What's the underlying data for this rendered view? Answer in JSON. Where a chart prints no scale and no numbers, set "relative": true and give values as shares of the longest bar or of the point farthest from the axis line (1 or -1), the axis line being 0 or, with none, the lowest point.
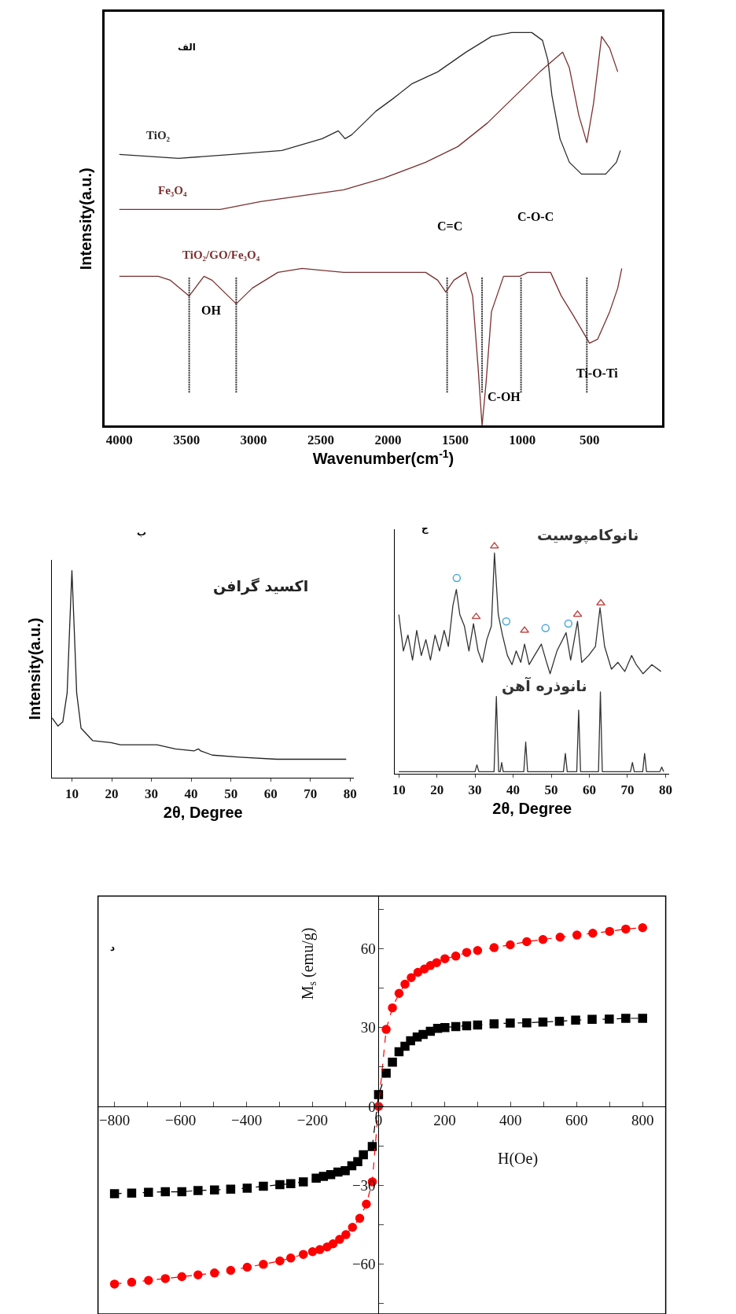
{
  "chart_data": [
    {
      "type": "line",
      "relative": true,
      "xlabel": "Wavenumber(cm$^{-1}$)",
      "ylabel": "Intensity(a.u.)",
      "xlim": [
        4110,
        -40
      ],
      "xticks": [
        4000,
        3500,
        3000,
        2500,
        2000,
        1500,
        1000,
        500
      ],
      "annotations": [
        "الف",
        "OH",
        "C=C",
        "C-O-C",
        "C-OH",
        "Ti-O-Ti"
      ],
      "ref_lines": [
        {
          "axis": "x",
          "value": 3480,
          "line_style": "dotted",
          "color": "#333333"
        },
        {
          "axis": "x",
          "value": 3130,
          "line_style": "dotted",
          "color": "#333333"
        },
        {
          "axis": "x",
          "value": 1560,
          "line_style": "dotted",
          "color": "#333333"
        },
        {
          "axis": "x",
          "value": 1300,
          "line_style": "dotted",
          "color": "#333333"
        },
        {
          "axis": "x",
          "value": 1010,
          "line_style": "dotted",
          "color": "#333333"
        },
        {
          "axis": "x",
          "value": 520,
          "line_style": "dotted",
          "color": "#333333"
        }
      ],
      "series": [
        {
          "name": "TiO₂",
          "color": "#2b2b2b",
          "x": [
            4000,
            3560,
            3160,
            2790,
            2490,
            2370,
            2320,
            2270,
            2090,
            1970,
            1820,
            1630,
            1420,
            1230,
            1080,
            930,
            850,
            810,
            780,
            720,
            650,
            560,
            380,
            300,
            270
          ],
          "values": [
            0.69,
            0.68,
            0.69,
            0.7,
            0.73,
            0.75,
            0.73,
            0.74,
            0.8,
            0.83,
            0.87,
            0.9,
            0.95,
            0.99,
            1.0,
            1.0,
            0.98,
            0.93,
            0.84,
            0.73,
            0.67,
            0.64,
            0.64,
            0.67,
            0.7
          ]
        },
        {
          "name": "Fe₃O₄",
          "color": "#7a3030",
          "x": [
            4000,
            3250,
            2950,
            2330,
            2030,
            1720,
            1480,
            1260,
            1050,
            870,
            700,
            650,
            580,
            520,
            470,
            410,
            350,
            290
          ],
          "values": [
            0.55,
            0.55,
            0.57,
            0.6,
            0.63,
            0.67,
            0.71,
            0.77,
            0.84,
            0.9,
            0.95,
            0.91,
            0.79,
            0.72,
            0.82,
            0.99,
            0.96,
            0.9
          ]
        },
        {
          "name": "TiO₂/GO/Fe₃O₄",
          "color": "#7a3030",
          "x": [
            4000,
            3710,
            3620,
            3480,
            3370,
            3310,
            3130,
            3010,
            2820,
            2640,
            2330,
            2030,
            1720,
            1630,
            1570,
            1510,
            1420,
            1370,
            1330,
            1300,
            1270,
            1230,
            1140,
            1020,
            960,
            790,
            710,
            620,
            500,
            440,
            350,
            290,
            260
          ],
          "values": [
            0.38,
            0.38,
            0.37,
            0.33,
            0.38,
            0.37,
            0.31,
            0.35,
            0.39,
            0.4,
            0.39,
            0.39,
            0.39,
            0.37,
            0.34,
            0.37,
            0.39,
            0.33,
            0.15,
            0.0,
            0.11,
            0.29,
            0.38,
            0.38,
            0.39,
            0.39,
            0.33,
            0.28,
            0.21,
            0.22,
            0.29,
            0.35,
            0.4
          ]
        }
      ]
    },
    {
      "type": "line",
      "relative": true,
      "xlabel": "2θ, Degree",
      "ylabel": "Intensity(a.u.)",
      "xlim": [
        5,
        81
      ],
      "xticks": [
        10,
        20,
        30,
        40,
        50,
        60,
        70,
        80
      ],
      "annotations": [
        "ب"
      ],
      "series": [
        {
          "name": "اکسید گرافن",
          "color": "#222222",
          "x": [
            5.0,
            6.5,
            7.7,
            8.8,
            9.4,
            10.0,
            10.6,
            11.2,
            12.3,
            15.2,
            19.8,
            22.2,
            26.8,
            31.4,
            36.0,
            40.7,
            41.8,
            42.4,
            45.3,
            52.2,
            61.5,
            73.1,
            79.0
          ],
          "values": [
            0.29,
            0.25,
            0.27,
            0.41,
            0.71,
            1.0,
            0.71,
            0.41,
            0.24,
            0.18,
            0.17,
            0.16,
            0.16,
            0.16,
            0.14,
            0.13,
            0.14,
            0.13,
            0.11,
            0.1,
            0.09,
            0.09,
            0.09
          ]
        }
      ]
    },
    {
      "type": "line",
      "relative": true,
      "xlabel": "2θ, Degree",
      "xlim": [
        9,
        81
      ],
      "xticks": [
        10,
        20,
        30,
        40,
        50,
        60,
        70,
        80
      ],
      "annotations": [
        "ج"
      ],
      "series": [
        {
          "name": "نانوکامپوسیت",
          "color": "#333333",
          "x": [
            10.0,
            11.2,
            12.4,
            13.6,
            14.7,
            15.9,
            17.1,
            18.3,
            19.5,
            20.7,
            21.9,
            23.0,
            24.2,
            25.1,
            26.0,
            27.2,
            28.4,
            29.6,
            30.8,
            31.9,
            33.1,
            34.3,
            35.1,
            36.1,
            37.2,
            38.5,
            39.7,
            40.8,
            42.0,
            43.0,
            44.2,
            45.6,
            47.4,
            48.6,
            49.7,
            51.5,
            53.9,
            55.1,
            56.9,
            58.0,
            59.8,
            61.6,
            62.8,
            64.0,
            65.8,
            67.5,
            69.3,
            71.1,
            72.3,
            74.1,
            76.4,
            78.8
          ],
          "values": [
            0.7,
            0.54,
            0.61,
            0.5,
            0.63,
            0.52,
            0.59,
            0.5,
            0.61,
            0.54,
            0.63,
            0.56,
            0.74,
            0.81,
            0.7,
            0.65,
            0.54,
            0.66,
            0.54,
            0.49,
            0.59,
            0.65,
            0.97,
            0.7,
            0.61,
            0.52,
            0.48,
            0.54,
            0.49,
            0.57,
            0.48,
            0.52,
            0.57,
            0.5,
            0.44,
            0.54,
            0.62,
            0.5,
            0.67,
            0.49,
            0.52,
            0.56,
            0.73,
            0.56,
            0.46,
            0.49,
            0.45,
            0.52,
            0.48,
            0.44,
            0.48,
            0.45
          ]
        },
        {
          "name": "نانوذره آهن",
          "color": "#333333",
          "x": [
            10,
            30,
            30.5,
            31,
            35,
            35.6,
            36.2,
            36.6,
            37,
            37.4,
            42.8,
            43.3,
            43.8,
            53.2,
            53.7,
            54.2,
            56.7,
            57.2,
            57.7,
            62.4,
            62.9,
            63.4,
            70.8,
            71.3,
            71.8,
            74,
            74.5,
            75,
            78.5,
            79,
            79.5
          ],
          "values": [
            0.01,
            0.01,
            0.04,
            0.01,
            0.01,
            0.34,
            0.01,
            0.01,
            0.05,
            0.01,
            0.01,
            0.14,
            0.01,
            0.01,
            0.09,
            0.01,
            0.01,
            0.28,
            0.01,
            0.01,
            0.36,
            0.01,
            0.01,
            0.05,
            0.01,
            0.01,
            0.09,
            0.01,
            0.01,
            0.03,
            0.01
          ]
        },
        {
          "type": "scatter",
          "marker": "triangle",
          "color": "#c0504d",
          "x": [
            30.3,
            35.1,
            43.0,
            56.9,
            63.0
          ],
          "values": [
            0.69,
            1.0,
            0.63,
            0.7,
            0.75
          ]
        },
        {
          "type": "scatter",
          "marker": "circle",
          "color": "#4aa8d8",
          "x": [
            25.2,
            38.2,
            48.5,
            54.5
          ],
          "values": [
            0.86,
            0.67,
            0.64,
            0.66
          ]
        }
      ]
    },
    {
      "type": "line",
      "xlabel": "H(Oe)",
      "ylabel": "M$_{s}$ (emu/g)",
      "xlim": [
        -850,
        870
      ],
      "ylim": [
        -79,
        80
      ],
      "line_style": "dashed",
      "xticks": [
        -800,
        {
          "value": -700,
          "label": null
        },
        -600,
        {
          "value": -500,
          "label": null
        },
        -400,
        {
          "value": -300,
          "label": null
        },
        -200,
        {
          "value": -100,
          "label": null
        },
        0,
        {
          "value": 100,
          "label": null
        },
        200,
        {
          "value": 300,
          "label": null
        },
        400,
        {
          "value": 500,
          "label": null
        },
        600,
        {
          "value": 700,
          "label": null
        },
        800
      ],
      "yticks": [
        {
          "value": -75,
          "label": null
        },
        -60,
        {
          "value": -45,
          "label": null
        },
        -30,
        {
          "value": -15,
          "label": null
        },
        0,
        {
          "value": 15,
          "label": null
        },
        30,
        {
          "value": 45,
          "label": null
        },
        60,
        {
          "value": 75,
          "label": null
        }
      ],
      "annotations": [
        "د"
      ],
      "series": [
        {
          "color": "#000000",
          "marker": "square",
          "x": [
            -800,
            -748,
            -697,
            -646,
            -596,
            -547,
            -497,
            -448,
            -398,
            -349,
            -299,
            -266,
            -228,
            -189,
            -167,
            -145,
            -123,
            -101,
            -81,
            -63,
            -46,
            -19,
            0,
            23,
            42,
            62,
            80,
            97,
            117,
            135,
            157,
            179,
            201,
            234,
            267,
            300,
            350,
            399,
            449,
            498,
            548,
            597,
            647,
            699,
            749,
            800
          ],
          "values": [
            -33.2,
            -33.0,
            -32.7,
            -32.5,
            -32.5,
            -32.0,
            -31.8,
            -31.5,
            -31.1,
            -30.4,
            -29.8,
            -29.4,
            -28.7,
            -27.3,
            -26.6,
            -26.0,
            -25.0,
            -24.5,
            -22.6,
            -21.0,
            -18.4,
            -15.3,
            4.5,
            12.6,
            16.8,
            20.8,
            22.9,
            25.0,
            26.4,
            27.4,
            28.6,
            29.7,
            30.0,
            30.4,
            30.7,
            31.0,
            31.4,
            31.7,
            31.8,
            32.1,
            32.4,
            32.8,
            33.1,
            33.2,
            33.5,
            33.5
          ]
        },
        {
          "color": "#ff0000",
          "marker": "circle",
          "x": [
            -800,
            -748,
            -697,
            -646,
            -596,
            -547,
            -497,
            -448,
            -398,
            -349,
            -299,
            -266,
            -228,
            -200,
            -178,
            -156,
            -138,
            -118,
            -99,
            -79,
            -57,
            -37,
            -19,
            0,
            23,
            42,
            62,
            80,
            99,
            119,
            139,
            157,
            176,
            201,
            234,
            267,
            300,
            350,
            399,
            449,
            498,
            550,
            601,
            649,
            700,
            749,
            800
          ],
          "values": [
            -67.6,
            -66.9,
            -66.2,
            -65.5,
            -64.8,
            -64.1,
            -63.4,
            -62.4,
            -61.2,
            -60.1,
            -58.8,
            -57.7,
            -56.3,
            -55.3,
            -54.5,
            -53.5,
            -52.3,
            -50.6,
            -48.8,
            -46.0,
            -42.6,
            -37.2,
            -28.7,
            0,
            29.3,
            37.5,
            43.0,
            46.5,
            49.0,
            51.0,
            52.3,
            53.6,
            54.7,
            56.2,
            57.2,
            58.6,
            59.3,
            60.4,
            61.5,
            62.7,
            63.5,
            64.4,
            65.2,
            65.9,
            66.6,
            67.5,
            68.0
          ]
        }
      ]
    }
  ]
}
